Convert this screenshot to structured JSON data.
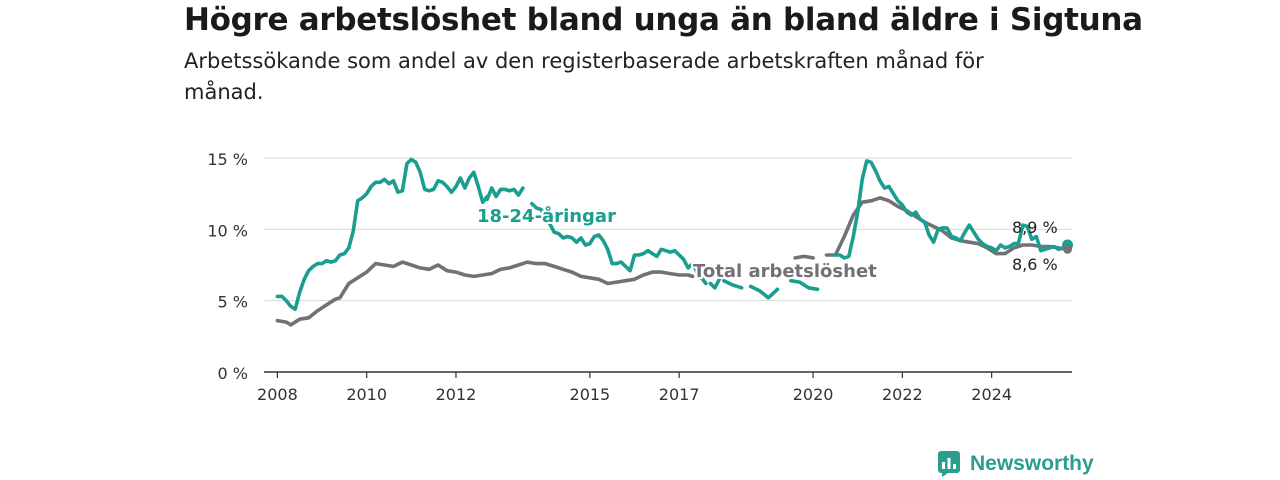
{
  "title": "Högre arbetslöshet bland unga än bland äldre i Sigtuna",
  "subtitle": "Arbetssökande som andel av den registerbaserade arbetskraften månad för månad.",
  "brand": {
    "name": "Newsworthy",
    "icon": "newsworthy-logo-icon"
  },
  "colors": {
    "youth": "#1a9e8f",
    "total": "#737078",
    "grid": "#d8d8d8",
    "axis": "#333333"
  },
  "chart_data": {
    "type": "line",
    "title": "Högre arbetslöshet bland unga än bland äldre i Sigtuna",
    "subtitle": "Arbetssökande som andel av den registerbaserade arbetskraften månad för månad.",
    "x_ticks": [
      "2008",
      "2010",
      "2012",
      "2015",
      "2017",
      "2020",
      "2022",
      "2024"
    ],
    "x_tick_values": [
      2008,
      2010,
      2012,
      2015,
      2017,
      2020,
      2022,
      2024
    ],
    "y_ticks": [
      "0 %",
      "5 %",
      "10 %",
      "15 %"
    ],
    "y_tick_values": [
      0,
      5,
      10,
      15
    ],
    "xlim": [
      2007.7,
      2025.8
    ],
    "ylim": [
      0,
      15
    ],
    "grid": true,
    "series": [
      {
        "name": "18-24-åringar",
        "label": "18-24-åringar",
        "end_label": "8,9 %",
        "points": [
          [
            2008.0,
            5.3
          ],
          [
            2008.1,
            5.3
          ],
          [
            2008.2,
            5.0
          ],
          [
            2008.3,
            4.6
          ],
          [
            2008.4,
            4.4
          ],
          [
            2008.5,
            5.6
          ],
          [
            2008.6,
            6.5
          ],
          [
            2008.7,
            7.1
          ],
          [
            2008.8,
            7.4
          ],
          [
            2008.9,
            7.6
          ],
          [
            2009.0,
            7.6
          ],
          [
            2009.1,
            7.8
          ],
          [
            2009.2,
            7.7
          ],
          [
            2009.3,
            7.8
          ],
          [
            2009.4,
            8.2
          ],
          [
            2009.5,
            8.3
          ],
          [
            2009.6,
            8.7
          ],
          [
            2009.7,
            9.9
          ],
          [
            2009.8,
            12.0
          ],
          [
            2009.9,
            12.2
          ],
          [
            2010.0,
            12.5
          ],
          [
            2010.1,
            13.0
          ],
          [
            2010.2,
            13.3
          ],
          [
            2010.3,
            13.3
          ],
          [
            2010.4,
            13.5
          ],
          [
            2010.5,
            13.2
          ],
          [
            2010.6,
            13.4
          ],
          [
            2010.7,
            12.6
          ],
          [
            2010.8,
            12.7
          ],
          [
            2010.9,
            14.6
          ],
          [
            2011.0,
            14.9
          ],
          [
            2011.1,
            14.7
          ],
          [
            2011.2,
            14.0
          ],
          [
            2011.3,
            12.8
          ],
          [
            2011.4,
            12.7
          ],
          [
            2011.5,
            12.8
          ],
          [
            2011.6,
            13.4
          ],
          [
            2011.7,
            13.3
          ],
          [
            2011.8,
            13.0
          ],
          [
            2011.9,
            12.6
          ],
          [
            2012.0,
            13.0
          ],
          [
            2012.1,
            13.6
          ],
          [
            2012.2,
            12.9
          ],
          [
            2012.3,
            13.6
          ],
          [
            2012.4,
            14.0
          ],
          [
            2012.5,
            13.0
          ],
          [
            2012.6,
            11.9
          ],
          [
            2012.7,
            12.3
          ]
        ],
        "points_2": [
          [
            2012.7,
            12.1
          ],
          [
            2012.8,
            12.9
          ],
          [
            2012.9,
            12.3
          ],
          [
            2013.0,
            12.8
          ],
          [
            2013.1,
            12.8
          ],
          [
            2013.2,
            12.7
          ],
          [
            2013.3,
            12.8
          ],
          [
            2013.4,
            12.4
          ],
          [
            2013.5,
            12.9
          ]
        ],
        "points_3": [
          [
            2013.7,
            11.8
          ],
          [
            2013.8,
            11.5
          ],
          [
            2013.9,
            11.4
          ],
          [
            2014.0,
            11.0
          ],
          [
            2014.1,
            10.4
          ],
          [
            2014.2,
            9.8
          ],
          [
            2014.3,
            9.7
          ],
          [
            2014.4,
            9.4
          ],
          [
            2014.5,
            9.5
          ],
          [
            2014.6,
            9.4
          ],
          [
            2014.7,
            9.1
          ],
          [
            2014.8,
            9.4
          ],
          [
            2014.9,
            8.9
          ],
          [
            2015.0,
            9.0
          ],
          [
            2015.1,
            9.5
          ],
          [
            2015.2,
            9.6
          ],
          [
            2015.3,
            9.2
          ],
          [
            2015.4,
            8.6
          ],
          [
            2015.5,
            7.6
          ],
          [
            2015.6,
            7.6
          ],
          [
            2015.7,
            7.7
          ],
          [
            2015.8,
            7.4
          ],
          [
            2015.9,
            7.1
          ],
          [
            2016.0,
            8.2
          ],
          [
            2016.1,
            8.2
          ],
          [
            2016.2,
            8.3
          ],
          [
            2016.3,
            8.5
          ],
          [
            2016.4,
            8.3
          ],
          [
            2016.5,
            8.1
          ],
          [
            2016.6,
            8.6
          ],
          [
            2016.7,
            8.5
          ],
          [
            2016.8,
            8.4
          ],
          [
            2016.9,
            8.5
          ],
          [
            2017.0,
            8.2
          ],
          [
            2017.1,
            7.9
          ],
          [
            2017.2,
            7.3
          ],
          [
            2017.3,
            7.6
          ],
          [
            2017.4,
            7.0
          ],
          [
            2017.5,
            6.6
          ],
          [
            2017.6,
            6.2
          ]
        ],
        "points_4": [
          [
            2017.7,
            6.2
          ],
          [
            2017.8,
            5.9
          ],
          [
            2017.9,
            6.5
          ]
        ],
        "points_5": [
          [
            2018.0,
            6.4
          ],
          [
            2018.2,
            6.1
          ],
          [
            2018.4,
            5.9
          ]
        ],
        "points_6": [
          [
            2018.6,
            6.0
          ],
          [
            2018.8,
            5.7
          ],
          [
            2019.0,
            5.2
          ],
          [
            2019.2,
            5.8
          ]
        ],
        "points_7": [
          [
            2019.5,
            6.4
          ],
          [
            2019.7,
            6.3
          ],
          [
            2019.9,
            5.9
          ],
          [
            2020.1,
            5.8
          ]
        ],
        "points_8": [
          [
            2020.5,
            8.2
          ],
          [
            2020.6,
            8.2
          ],
          [
            2020.7,
            8.0
          ],
          [
            2020.8,
            8.1
          ],
          [
            2020.9,
            9.5
          ],
          [
            2021.0,
            11.2
          ],
          [
            2021.1,
            13.5
          ],
          [
            2021.2,
            14.8
          ],
          [
            2021.3,
            14.7
          ],
          [
            2021.4,
            14.1
          ],
          [
            2021.5,
            13.4
          ],
          [
            2021.6,
            12.9
          ],
          [
            2021.7,
            13.0
          ],
          [
            2021.8,
            12.5
          ],
          [
            2021.9,
            12.0
          ],
          [
            2022.0,
            11.7
          ],
          [
            2022.1,
            11.2
          ],
          [
            2022.2,
            11.0
          ],
          [
            2022.3,
            11.2
          ],
          [
            2022.4,
            10.7
          ],
          [
            2022.5,
            10.5
          ],
          [
            2022.6,
            9.6
          ],
          [
            2022.7,
            9.1
          ],
          [
            2022.8,
            10.0
          ],
          [
            2022.9,
            10.1
          ],
          [
            2023.0,
            10.1
          ],
          [
            2023.1,
            9.5
          ],
          [
            2023.2,
            9.4
          ],
          [
            2023.3,
            9.2
          ],
          [
            2023.4,
            9.8
          ],
          [
            2023.5,
            10.3
          ],
          [
            2023.6,
            9.8
          ],
          [
            2023.7,
            9.3
          ],
          [
            2023.8,
            9.0
          ],
          [
            2023.9,
            8.8
          ],
          [
            2024.0,
            8.7
          ],
          [
            2024.1,
            8.5
          ],
          [
            2024.2,
            8.9
          ],
          [
            2024.3,
            8.7
          ],
          [
            2024.4,
            8.8
          ],
          [
            2024.5,
            9.0
          ],
          [
            2024.6,
            9.0
          ],
          [
            2024.7,
            10.3
          ],
          [
            2024.8,
            10.2
          ],
          [
            2024.9,
            9.3
          ],
          [
            2025.0,
            9.5
          ],
          [
            2025.1,
            8.5
          ],
          [
            2025.2,
            8.6
          ],
          [
            2025.3,
            8.7
          ],
          [
            2025.4,
            8.8
          ],
          [
            2025.5,
            8.6
          ],
          [
            2025.6,
            8.7
          ],
          [
            2025.7,
            8.9
          ]
        ]
      },
      {
        "name": "Total arbetslöshet",
        "label": "Total arbetslöshet",
        "end_label": "8,6 %",
        "points": [
          [
            2008.0,
            3.6
          ],
          [
            2008.2,
            3.5
          ],
          [
            2008.3,
            3.3
          ],
          [
            2008.5,
            3.7
          ],
          [
            2008.7,
            3.8
          ],
          [
            2008.9,
            4.3
          ],
          [
            2009.1,
            4.7
          ],
          [
            2009.3,
            5.1
          ],
          [
            2009.4,
            5.2
          ],
          [
            2009.6,
            6.2
          ],
          [
            2009.8,
            6.6
          ],
          [
            2010.0,
            7.0
          ],
          [
            2010.2,
            7.6
          ],
          [
            2010.4,
            7.5
          ],
          [
            2010.6,
            7.4
          ],
          [
            2010.8,
            7.7
          ],
          [
            2011.0,
            7.5
          ],
          [
            2011.2,
            7.3
          ],
          [
            2011.4,
            7.2
          ],
          [
            2011.6,
            7.5
          ],
          [
            2011.8,
            7.1
          ],
          [
            2012.0,
            7.0
          ],
          [
            2012.2,
            6.8
          ],
          [
            2012.4,
            6.7
          ],
          [
            2012.6,
            6.8
          ],
          [
            2012.8,
            6.9
          ],
          [
            2013.0,
            7.2
          ],
          [
            2013.2,
            7.3
          ],
          [
            2013.4,
            7.5
          ],
          [
            2013.6,
            7.7
          ],
          [
            2013.8,
            7.6
          ],
          [
            2014.0,
            7.6
          ],
          [
            2014.2,
            7.4
          ],
          [
            2014.4,
            7.2
          ],
          [
            2014.6,
            7.0
          ],
          [
            2014.8,
            6.7
          ],
          [
            2015.0,
            6.6
          ],
          [
            2015.2,
            6.5
          ],
          [
            2015.4,
            6.2
          ],
          [
            2015.6,
            6.3
          ],
          [
            2015.8,
            6.4
          ],
          [
            2016.0,
            6.5
          ],
          [
            2016.2,
            6.8
          ],
          [
            2016.4,
            7.0
          ],
          [
            2016.6,
            7.0
          ],
          [
            2016.8,
            6.9
          ],
          [
            2017.0,
            6.8
          ],
          [
            2017.2,
            6.8
          ],
          [
            2017.3,
            6.7
          ]
        ],
        "points_2": [
          [
            2019.6,
            8.0
          ],
          [
            2019.8,
            8.1
          ],
          [
            2020.0,
            8.0
          ]
        ],
        "points_3": [
          [
            2020.3,
            8.2
          ],
          [
            2020.5,
            8.2
          ],
          [
            2020.7,
            9.5
          ],
          [
            2020.9,
            11.0
          ],
          [
            2021.1,
            11.9
          ],
          [
            2021.3,
            12.0
          ],
          [
            2021.5,
            12.2
          ],
          [
            2021.7,
            12.0
          ],
          [
            2021.9,
            11.6
          ],
          [
            2022.1,
            11.3
          ],
          [
            2022.3,
            10.9
          ],
          [
            2022.5,
            10.5
          ],
          [
            2022.7,
            10.2
          ],
          [
            2022.9,
            9.9
          ],
          [
            2023.1,
            9.4
          ],
          [
            2023.3,
            9.2
          ],
          [
            2023.5,
            9.1
          ],
          [
            2023.7,
            9.0
          ],
          [
            2023.9,
            8.7
          ],
          [
            2024.1,
            8.3
          ],
          [
            2024.3,
            8.3
          ],
          [
            2024.5,
            8.7
          ],
          [
            2024.7,
            8.9
          ],
          [
            2024.9,
            8.9
          ],
          [
            2025.1,
            8.8
          ],
          [
            2025.3,
            8.8
          ],
          [
            2025.5,
            8.7
          ],
          [
            2025.7,
            8.6
          ]
        ]
      }
    ]
  }
}
